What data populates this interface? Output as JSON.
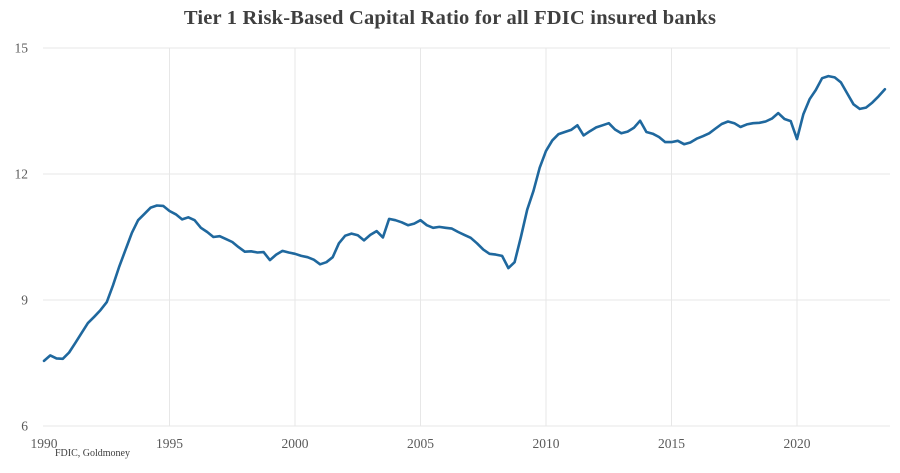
{
  "source_label": "FDIC, Goldmoney",
  "chart_data": {
    "type": "line",
    "title": "Tier 1 Risk-Based Capital Ratio for all FDIC insured banks",
    "xlabel": "",
    "ylabel": "",
    "series_name": "Tier 1 Risk-Based Capital Ratio (all FDIC insured banks)",
    "x_start": 1990,
    "x_step_years": 0.25,
    "x_end": 2023.5,
    "xticks": [
      1990,
      1995,
      2000,
      2005,
      2010,
      2015,
      2020
    ],
    "yticks": [
      6,
      9,
      12,
      15
    ],
    "ylim": [
      6,
      15
    ],
    "xlim": [
      1990,
      2023.6
    ],
    "grid": true,
    "legend": false,
    "line_color": "#1f689e",
    "grid_color": "#e7e7e7",
    "tick_label_color": "#5a5a5a",
    "title_color": "#3f3f3f",
    "values": [
      7.55,
      7.68,
      7.61,
      7.6,
      7.75,
      7.98,
      8.22,
      8.45,
      8.6,
      8.76,
      8.95,
      9.35,
      9.8,
      10.2,
      10.6,
      10.9,
      11.05,
      11.2,
      11.25,
      11.24,
      11.12,
      11.04,
      10.92,
      10.97,
      10.9,
      10.72,
      10.62,
      10.5,
      10.52,
      10.45,
      10.38,
      10.26,
      10.15,
      10.16,
      10.13,
      10.14,
      9.95,
      10.08,
      10.17,
      10.13,
      10.1,
      10.05,
      10.02,
      9.96,
      9.85,
      9.9,
      10.02,
      10.35,
      10.53,
      10.58,
      10.54,
      10.42,
      10.55,
      10.64,
      10.49,
      10.93,
      10.9,
      10.85,
      10.78,
      10.82,
      10.9,
      10.78,
      10.72,
      10.74,
      10.72,
      10.7,
      10.62,
      10.55,
      10.48,
      10.35,
      10.2,
      10.1,
      10.08,
      10.05,
      9.76,
      9.9,
      10.5,
      11.15,
      11.6,
      12.15,
      12.55,
      12.8,
      12.95,
      13.0,
      13.05,
      13.16,
      12.92,
      13.02,
      13.11,
      13.16,
      13.21,
      13.06,
      12.97,
      13.01,
      13.1,
      13.27,
      13.0,
      12.96,
      12.88,
      12.76,
      12.76,
      12.79,
      12.71,
      12.75,
      12.84,
      12.9,
      12.97,
      13.08,
      13.19,
      13.25,
      13.21,
      13.12,
      13.18,
      13.21,
      13.22,
      13.25,
      13.32,
      13.45,
      13.31,
      13.26,
      12.83,
      13.42,
      13.78,
      14.0,
      14.28,
      14.33,
      14.3,
      14.18,
      13.92,
      13.66,
      13.55,
      13.58,
      13.7,
      13.85,
      14.02
    ]
  }
}
